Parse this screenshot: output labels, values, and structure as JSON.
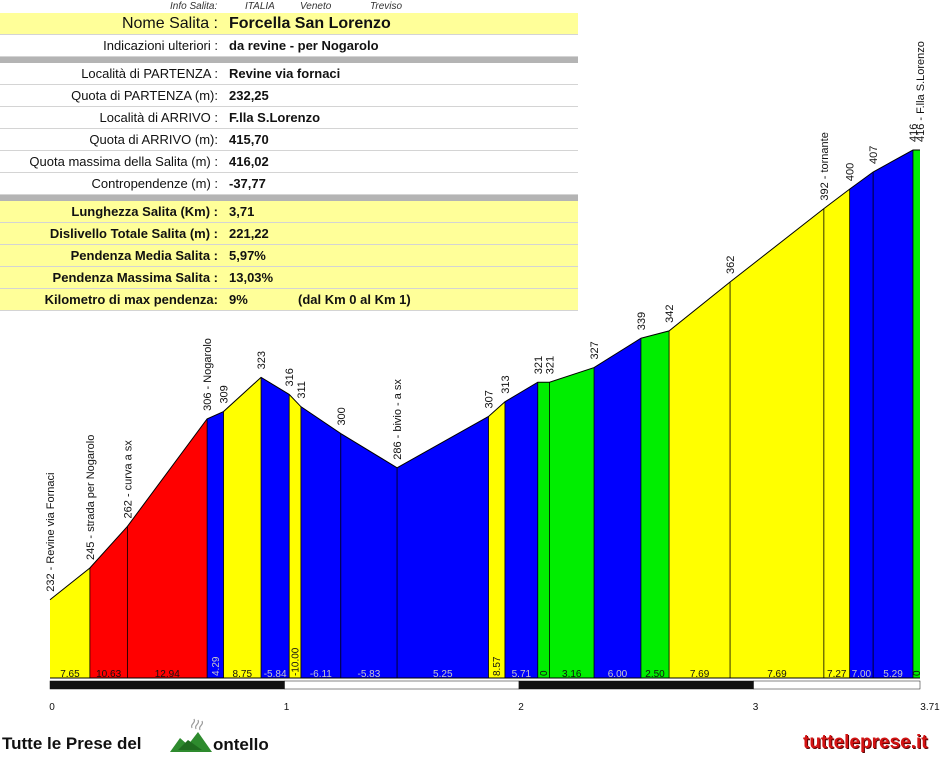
{
  "header": {
    "info_label": "Info Salita:",
    "country": "ITALIA",
    "region": "Veneto",
    "province": "Treviso"
  },
  "info": {
    "nome_label": "Nome Salita :",
    "nome_value": "Forcella San Lorenzo",
    "indicazioni_label": "Indicazioni ulteriori :",
    "indicazioni_value": "da revine - per Nogarolo",
    "partenza_label": "Località di PARTENZA :",
    "partenza_value": "Revine via fornaci",
    "quota_partenza_label": "Quota di PARTENZA (m):",
    "quota_partenza_value": "232,25",
    "arrivo_label": "Località di ARRIVO :",
    "arrivo_value": "F.lla S.Lorenzo",
    "quota_arrivo_label": "Quota di ARRIVO (m):",
    "quota_arrivo_value": "415,70",
    "quota_max_label": "Quota massima della Salita (m) :",
    "quota_max_value": "416,02",
    "contropendenze_label": "Contropendenze (m) :",
    "contropendenze_value": "-37,77",
    "lunghezza_label": "Lunghezza Salita (Km) :",
    "lunghezza_value": "3,71",
    "dislivello_label": "Dislivello Totale Salita (m) :",
    "dislivello_value": "221,22",
    "pend_media_label": "Pendenza Media Salita :",
    "pend_media_value": "5,97%",
    "pend_max_label": "Pendenza Massima Salita :",
    "pend_max_value": "13,03%",
    "km_max_label": "Kilometro di max pendenza:",
    "km_max_value": "9%",
    "km_max_extra": "(dal Km 0 al Km 1)"
  },
  "colors": {
    "yellow": "#ffff00",
    "red": "#ff0000",
    "blue": "#0000ff",
    "green": "#00ee00",
    "info_bg": "#ffff99",
    "brand_red": "#d41414"
  },
  "chart_data": {
    "type": "area",
    "title": "",
    "xlabel": "",
    "ylabel": "",
    "x_ticks": [
      "0",
      "1",
      "2",
      "3",
      "3.71"
    ],
    "x_tick_values": [
      0,
      1,
      2,
      3,
      3.71
    ],
    "xlim": [
      0,
      3.71
    ],
    "ylim": [
      200,
      420
    ],
    "profile": [
      {
        "km": 0.0,
        "alt": 232,
        "label": "232 - Revine via Fornaci"
      },
      {
        "km": 0.17,
        "alt": 245,
        "label": "245 - strada per Nogarolo"
      },
      {
        "km": 0.33,
        "alt": 262,
        "label": "262 - curva a sx"
      },
      {
        "km": 0.67,
        "alt": 306,
        "label": "306 - Nogarolo"
      },
      {
        "km": 0.74,
        "alt": 309,
        "label": "309"
      },
      {
        "km": 0.9,
        "alt": 323,
        "label": "323"
      },
      {
        "km": 1.02,
        "alt": 316,
        "label": "316"
      },
      {
        "km": 1.07,
        "alt": 311,
        "label": "311"
      },
      {
        "km": 1.24,
        "alt": 300,
        "label": "300"
      },
      {
        "km": 1.48,
        "alt": 286,
        "label": "286 - bivio - a sx"
      },
      {
        "km": 1.87,
        "alt": 307,
        "label": "307"
      },
      {
        "km": 1.94,
        "alt": 313,
        "label": "313"
      },
      {
        "km": 2.08,
        "alt": 321,
        "label": "321"
      },
      {
        "km": 2.13,
        "alt": 321,
        "label": "321"
      },
      {
        "km": 2.32,
        "alt": 327,
        "label": "327"
      },
      {
        "km": 2.52,
        "alt": 339,
        "label": "339"
      },
      {
        "km": 2.64,
        "alt": 342,
        "label": "342"
      },
      {
        "km": 2.9,
        "alt": 362,
        "label": "362"
      },
      {
        "km": 3.3,
        "alt": 392,
        "label": "392 - tornante"
      },
      {
        "km": 3.41,
        "alt": 400,
        "label": "400"
      },
      {
        "km": 3.51,
        "alt": 407,
        "label": "407"
      },
      {
        "km": 3.68,
        "alt": 416,
        "label": "416"
      },
      {
        "km": 3.71,
        "alt": 416,
        "label": "416 - F.lla S.Lorenzo"
      }
    ],
    "segments": [
      {
        "gradient": "7.65",
        "color": "#ffff00"
      },
      {
        "gradient": "10.63",
        "color": "#ff0000"
      },
      {
        "gradient": "12.94",
        "color": "#ff0000"
      },
      {
        "gradient": "4.29",
        "color": "#0000ff"
      },
      {
        "gradient": "8.75",
        "color": "#ffff00"
      },
      {
        "gradient": "-5.84",
        "color": "#0000ff"
      },
      {
        "gradient": "-10.00",
        "color": "#ffff00"
      },
      {
        "gradient": "-6.11",
        "color": "#0000ff"
      },
      {
        "gradient": "-5.83",
        "color": "#0000ff"
      },
      {
        "gradient": "5.25",
        "color": "#0000ff"
      },
      {
        "gradient": "8.57",
        "color": "#ffff00"
      },
      {
        "gradient": "5.71",
        "color": "#0000ff"
      },
      {
        "gradient": "0",
        "color": "#00ee00"
      },
      {
        "gradient": "3.16",
        "color": "#00ee00"
      },
      {
        "gradient": "6.00",
        "color": "#0000ff"
      },
      {
        "gradient": "2.50",
        "color": "#00ee00"
      },
      {
        "gradient": "7.69",
        "color": "#ffff00"
      },
      {
        "gradient": "7.69",
        "color": "#ffff00"
      },
      {
        "gradient": "7.27",
        "color": "#ffff00"
      },
      {
        "gradient": "7.00",
        "color": "#0000ff"
      },
      {
        "gradient": "5.29",
        "color": "#0000ff"
      },
      {
        "gradient": "0",
        "color": "#00ee00"
      }
    ]
  },
  "footer": {
    "left_text": "Tutte le Prese del",
    "left_suffix": "ontello",
    "right_text": "tutteleprese.it"
  }
}
